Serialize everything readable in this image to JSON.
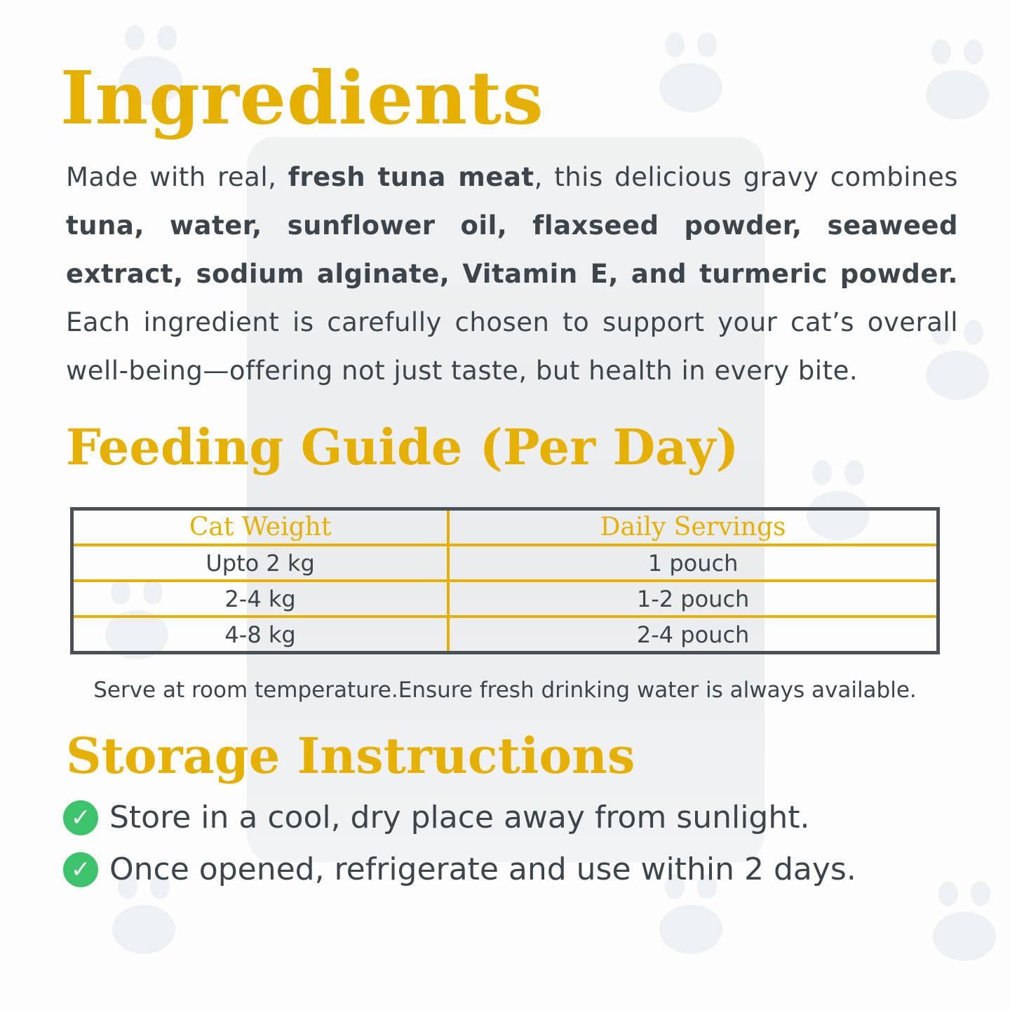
{
  "ingredients": {
    "title": "Ingredients",
    "segments": [
      {
        "text": "Made with real, ",
        "bold": false
      },
      {
        "text": "fresh tuna meat",
        "bold": true
      },
      {
        "text": ", this delicious gravy combines ",
        "bold": false
      },
      {
        "text": "tuna, water, sunflower oil, flaxseed powder, seaweed extract, sodium alginate, Vitamin E, and turmeric powder.",
        "bold": true
      },
      {
        "text": " Each ingredient is carefully chosen to support your cat’s overall well-being—offering not just taste, but health in every bite.",
        "bold": false
      }
    ]
  },
  "feeding": {
    "title": "Feeding Guide (Per Day)",
    "headers": [
      "Cat Weight",
      "Daily Servings"
    ],
    "rows": [
      [
        "Upto 2 kg",
        "1 pouch"
      ],
      [
        "2-4 kg",
        "1-2 pouch"
      ],
      [
        "4-8 kg",
        "2-4 pouch"
      ]
    ],
    "note": "Serve at room temperature.Ensure fresh drinking water is always available."
  },
  "storage": {
    "title": "Storage Instructions",
    "items": [
      "Store in a cool, dry place away from sunlight.",
      "Once opened, refrigerate and use within 2 days."
    ]
  },
  "colors": {
    "accent": "#e5b000",
    "text": "#3d454c",
    "check": "#3dc36b",
    "border": "#4a5056"
  }
}
